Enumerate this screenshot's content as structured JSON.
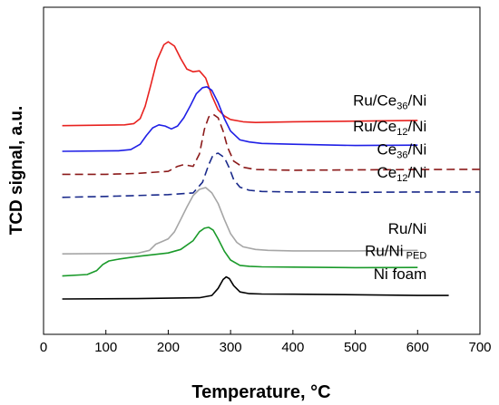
{
  "chart_data": {
    "type": "line",
    "xlabel": "Temperature, °C",
    "ylabel": "TCD signal, a.u.",
    "xlim": [
      0,
      700
    ],
    "xticks": [
      "0",
      "100",
      "200",
      "300",
      "400",
      "500",
      "600",
      "700"
    ],
    "y_ticks_shown": false,
    "grid": false,
    "legend": "inline labels at right of each curve",
    "series": [
      {
        "name": "Ru/Ce36/Ni",
        "label_main": "Ru/Ce",
        "label_sub": "36",
        "label_tail": "/Ni",
        "color": "#e8221f",
        "dash": "solid",
        "baseline": 0.88,
        "x": [
          30,
          130,
          145,
          155,
          163,
          172,
          182,
          193,
          200,
          210,
          220,
          230,
          240,
          250,
          260,
          270,
          280,
          290,
          300,
          320,
          340,
          400,
          500,
          600
        ],
        "y": [
          0.88,
          0.885,
          0.892,
          0.92,
          0.99,
          1.11,
          1.25,
          1.338,
          1.355,
          1.33,
          1.26,
          1.2,
          1.185,
          1.19,
          1.15,
          1.05,
          0.97,
          0.935,
          0.915,
          0.902,
          0.898,
          0.902,
          0.906,
          0.91
        ]
      },
      {
        "name": "Ru/Ce12/Ni",
        "label_main": "Ru/Ce",
        "label_sub": "12",
        "label_tail": "/Ni",
        "color": "#1f1fe6",
        "dash": "solid",
        "baseline": 0.735,
        "x": [
          30,
          120,
          140,
          155,
          165,
          175,
          185,
          195,
          205,
          215,
          225,
          235,
          245,
          255,
          262,
          270,
          280,
          290,
          300,
          315,
          330,
          350,
          400,
          500,
          600
        ],
        "y": [
          0.735,
          0.738,
          0.745,
          0.775,
          0.825,
          0.868,
          0.885,
          0.878,
          0.862,
          0.878,
          0.925,
          0.99,
          1.06,
          1.095,
          1.1,
          1.08,
          1.01,
          0.92,
          0.85,
          0.8,
          0.788,
          0.78,
          0.775,
          0.768,
          0.77
        ]
      },
      {
        "name": "Ce36/Ni",
        "label_main": "Ce",
        "label_sub": "36",
        "label_tail": "/Ni",
        "color": "#8b1a1a",
        "dash": "dashed",
        "baseline": 0.605,
        "x": [
          30,
          100,
          150,
          200,
          215,
          225,
          240,
          250,
          258,
          265,
          272,
          280,
          288,
          295,
          305,
          320,
          340,
          400,
          500,
          600,
          700
        ],
        "y": [
          0.605,
          0.605,
          0.61,
          0.622,
          0.65,
          0.66,
          0.65,
          0.72,
          0.86,
          0.93,
          0.945,
          0.925,
          0.85,
          0.76,
          0.68,
          0.645,
          0.632,
          0.628,
          0.63,
          0.632,
          0.633
        ]
      },
      {
        "name": "Ce12/Ni",
        "label_main": "Ce",
        "label_sub": "12",
        "label_tail": "/Ni",
        "color": "#1a2a8b",
        "dash": "dashed",
        "baseline": 0.475,
        "x": [
          30,
          100,
          200,
          240,
          255,
          265,
          272,
          280,
          290,
          298,
          305,
          315,
          330,
          350,
          400,
          500,
          600,
          700
        ],
        "y": [
          0.475,
          0.48,
          0.49,
          0.5,
          0.56,
          0.66,
          0.715,
          0.725,
          0.7,
          0.64,
          0.575,
          0.532,
          0.515,
          0.508,
          0.505,
          0.503,
          0.505,
          0.505
        ]
      },
      {
        "name": "Ru/Ni",
        "label_main": "Ru/Ni",
        "label_sub": "",
        "label_tail": "",
        "color": "#a6a6a6",
        "dash": "solid",
        "baseline": 0.155,
        "x": [
          30,
          150,
          170,
          180,
          190,
          200,
          210,
          220,
          230,
          240,
          250,
          260,
          270,
          280,
          290,
          300,
          310,
          320,
          340,
          360,
          400,
          500,
          600
        ],
        "y": [
          0.155,
          0.158,
          0.175,
          0.21,
          0.225,
          0.24,
          0.28,
          0.35,
          0.42,
          0.485,
          0.52,
          0.53,
          0.5,
          0.44,
          0.35,
          0.27,
          0.22,
          0.195,
          0.18,
          0.175,
          0.172,
          0.172,
          0.175
        ]
      },
      {
        "name": "Ru/Ni PED",
        "label_main": "Ru/Ni",
        "label_sub": "",
        "label_tail": " PED",
        "color": "#1a9a2a",
        "dash": "solid",
        "baseline": 0.03,
        "x": [
          30,
          70,
          85,
          95,
          105,
          120,
          150,
          200,
          220,
          240,
          250,
          258,
          265,
          272,
          280,
          290,
          300,
          315,
          330,
          350,
          400,
          500,
          600
        ],
        "y": [
          0.03,
          0.038,
          0.06,
          0.095,
          0.115,
          0.125,
          0.14,
          0.16,
          0.18,
          0.23,
          0.28,
          0.3,
          0.305,
          0.29,
          0.24,
          0.17,
          0.12,
          0.09,
          0.085,
          0.082,
          0.08,
          0.077,
          0.078
        ]
      },
      {
        "name": "Ni foam",
        "label_main": "Ni foam",
        "label_sub": "",
        "label_tail": "",
        "color": "#000000",
        "dash": "solid",
        "baseline": -0.1,
        "x": [
          30,
          150,
          250,
          270,
          280,
          288,
          293,
          298,
          305,
          315,
          330,
          350,
          400,
          500,
          600,
          650
        ],
        "y": [
          -0.1,
          -0.098,
          -0.093,
          -0.08,
          -0.04,
          0.01,
          0.025,
          0.015,
          -0.025,
          -0.06,
          -0.07,
          -0.072,
          -0.073,
          -0.076,
          -0.08,
          -0.08
        ]
      }
    ]
  }
}
